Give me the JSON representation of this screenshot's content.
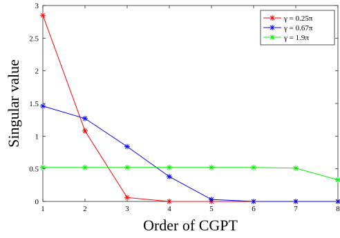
{
  "chart_data": {
    "type": "line",
    "title": "",
    "xlabel": "Order of CGPT",
    "ylabel": "Singular value",
    "xlim": [
      1,
      8
    ],
    "ylim": [
      0,
      3
    ],
    "xticks": [
      1,
      2,
      3,
      4,
      5,
      6,
      7,
      8
    ],
    "yticks": [
      0,
      0.5,
      1,
      1.5,
      2,
      2.5,
      3
    ],
    "ytick_labels": [
      "0",
      "0.5",
      "1",
      "1.5",
      "2",
      "2.5",
      "3"
    ],
    "grid": false,
    "legend_position": "top-right",
    "x": [
      1,
      2,
      3,
      4,
      5,
      6,
      7,
      8
    ],
    "series": [
      {
        "name": "γ = 0.25π",
        "color": "#ff0000",
        "marker": "asterisk",
        "values": [
          2.85,
          1.08,
          0.06,
          0.0,
          0.0,
          0.0,
          0.0,
          0.0
        ]
      },
      {
        "name": "γ = 0.67π",
        "color": "#0000ff",
        "marker": "asterisk",
        "values": [
          1.46,
          1.27,
          0.84,
          0.38,
          0.03,
          0.0,
          0.0,
          0.0
        ]
      },
      {
        "name": "γ = 1.9π",
        "color": "#00ee00",
        "marker": "asterisk",
        "values": [
          0.52,
          0.52,
          0.52,
          0.52,
          0.52,
          0.52,
          0.51,
          0.33
        ]
      }
    ]
  }
}
